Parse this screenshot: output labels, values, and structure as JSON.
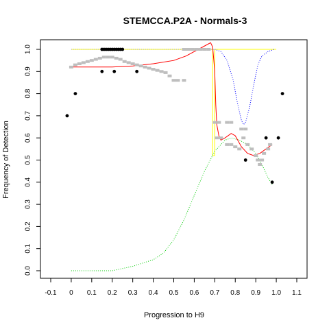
{
  "chart_data": {
    "type": "scatter",
    "title": "STEMCCA.P2A - Normals-3",
    "xlabel": "Progression to H9",
    "ylabel": "Frequency of Detection",
    "xlim": [
      -0.1,
      1.1
    ],
    "ylim": [
      0.0,
      1.0
    ],
    "x_ticks": [
      "-0.1",
      "0",
      "0.1",
      "0.2",
      "0.3",
      "0.4",
      "0.5",
      "0.6",
      "0.7",
      "0.8",
      "0.9",
      "1.0",
      "1.1"
    ],
    "y_ticks": [
      "0.0",
      "0.1",
      "0.2",
      "0.3",
      "0.4",
      "0.5",
      "0.6",
      "0.7",
      "0.8",
      "0.9",
      "1.0"
    ],
    "grid": false,
    "colors": {
      "black_points": "#000000",
      "gray_points": "#bebebe",
      "red_curve": "#ff0000",
      "blue_curve": "#0000ff",
      "green_curve": "#00cc00",
      "yellow_curve": "#ffff00"
    },
    "black_points": [
      {
        "x": -0.02,
        "y": 0.7
      },
      {
        "x": 0.02,
        "y": 0.8
      },
      {
        "x": 0.15,
        "y": 0.9
      },
      {
        "x": 0.21,
        "y": 0.9
      },
      {
        "x": 0.32,
        "y": 0.9
      },
      {
        "x": 0.15,
        "y": 1.0
      },
      {
        "x": 0.16,
        "y": 1.0
      },
      {
        "x": 0.17,
        "y": 1.0
      },
      {
        "x": 0.18,
        "y": 1.0
      },
      {
        "x": 0.19,
        "y": 1.0
      },
      {
        "x": 0.2,
        "y": 1.0
      },
      {
        "x": 0.21,
        "y": 1.0
      },
      {
        "x": 0.22,
        "y": 1.0
      },
      {
        "x": 0.23,
        "y": 1.0
      },
      {
        "x": 0.24,
        "y": 1.0
      },
      {
        "x": 0.25,
        "y": 1.0
      },
      {
        "x": 0.85,
        "y": 0.5
      },
      {
        "x": 0.95,
        "y": 0.6
      },
      {
        "x": 0.98,
        "y": 0.4
      },
      {
        "x": 1.01,
        "y": 0.6
      },
      {
        "x": 1.03,
        "y": 0.8
      }
    ],
    "gray_points": [
      {
        "x": 0.0,
        "y": 0.92
      },
      {
        "x": 0.02,
        "y": 0.93
      },
      {
        "x": 0.04,
        "y": 0.935
      },
      {
        "x": 0.06,
        "y": 0.94
      },
      {
        "x": 0.08,
        "y": 0.945
      },
      {
        "x": 0.1,
        "y": 0.95
      },
      {
        "x": 0.12,
        "y": 0.955
      },
      {
        "x": 0.14,
        "y": 0.96
      },
      {
        "x": 0.16,
        "y": 0.965
      },
      {
        "x": 0.18,
        "y": 0.965
      },
      {
        "x": 0.2,
        "y": 0.965
      },
      {
        "x": 0.22,
        "y": 0.96
      },
      {
        "x": 0.24,
        "y": 0.955
      },
      {
        "x": 0.26,
        "y": 0.945
      },
      {
        "x": 0.28,
        "y": 0.94
      },
      {
        "x": 0.3,
        "y": 0.935
      },
      {
        "x": 0.32,
        "y": 0.93
      },
      {
        "x": 0.34,
        "y": 0.925
      },
      {
        "x": 0.36,
        "y": 0.92
      },
      {
        "x": 0.38,
        "y": 0.915
      },
      {
        "x": 0.4,
        "y": 0.91
      },
      {
        "x": 0.42,
        "y": 0.905
      },
      {
        "x": 0.44,
        "y": 0.9
      },
      {
        "x": 0.46,
        "y": 0.895
      },
      {
        "x": 0.48,
        "y": 0.88
      },
      {
        "x": 0.5,
        "y": 0.86
      },
      {
        "x": 0.52,
        "y": 0.86
      },
      {
        "x": 0.55,
        "y": 0.86
      },
      {
        "x": 0.55,
        "y": 1.0
      },
      {
        "x": 0.57,
        "y": 1.0
      },
      {
        "x": 0.59,
        "y": 1.0
      },
      {
        "x": 0.61,
        "y": 1.0
      },
      {
        "x": 0.63,
        "y": 1.0
      },
      {
        "x": 0.65,
        "y": 1.0
      },
      {
        "x": 0.67,
        "y": 1.0
      },
      {
        "x": 0.7,
        "y": 0.67
      },
      {
        "x": 0.72,
        "y": 0.67
      },
      {
        "x": 0.76,
        "y": 0.67
      },
      {
        "x": 0.78,
        "y": 0.67
      },
      {
        "x": 0.71,
        "y": 0.6
      },
      {
        "x": 0.73,
        "y": 0.6
      },
      {
        "x": 0.83,
        "y": 0.64
      },
      {
        "x": 0.85,
        "y": 0.64
      },
      {
        "x": 0.76,
        "y": 0.57
      },
      {
        "x": 0.78,
        "y": 0.57
      },
      {
        "x": 0.8,
        "y": 0.56
      },
      {
        "x": 0.82,
        "y": 0.55
      },
      {
        "x": 0.84,
        "y": 0.6
      },
      {
        "x": 0.86,
        "y": 0.57
      },
      {
        "x": 0.88,
        "y": 0.55
      },
      {
        "x": 0.9,
        "y": 0.52
      },
      {
        "x": 0.91,
        "y": 0.5
      },
      {
        "x": 0.92,
        "y": 0.48
      },
      {
        "x": 0.93,
        "y": 0.5
      },
      {
        "x": 0.94,
        "y": 0.53
      },
      {
        "x": 0.96,
        "y": 0.55
      },
      {
        "x": 0.97,
        "y": 0.57
      }
    ],
    "red_curve": [
      {
        "x": 0.0,
        "y": 0.92
      },
      {
        "x": 0.1,
        "y": 0.92
      },
      {
        "x": 0.2,
        "y": 0.92
      },
      {
        "x": 0.3,
        "y": 0.925
      },
      {
        "x": 0.4,
        "y": 0.935
      },
      {
        "x": 0.5,
        "y": 0.95
      },
      {
        "x": 0.56,
        "y": 0.97
      },
      {
        "x": 0.62,
        "y": 1.0
      },
      {
        "x": 0.66,
        "y": 1.02
      },
      {
        "x": 0.68,
        "y": 1.03
      },
      {
        "x": 0.69,
        "y": 1.01
      },
      {
        "x": 0.7,
        "y": 0.9
      },
      {
        "x": 0.705,
        "y": 0.75
      },
      {
        "x": 0.71,
        "y": 0.66
      },
      {
        "x": 0.72,
        "y": 0.61
      },
      {
        "x": 0.73,
        "y": 0.59
      },
      {
        "x": 0.75,
        "y": 0.6
      },
      {
        "x": 0.78,
        "y": 0.62
      },
      {
        "x": 0.8,
        "y": 0.61
      },
      {
        "x": 0.83,
        "y": 0.56
      },
      {
        "x": 0.86,
        "y": 0.53
      },
      {
        "x": 0.89,
        "y": 0.52
      },
      {
        "x": 0.92,
        "y": 0.53
      },
      {
        "x": 0.95,
        "y": 0.55
      },
      {
        "x": 0.98,
        "y": 0.57
      }
    ],
    "blue_curve": [
      {
        "x": 0.7,
        "y": 1.0
      },
      {
        "x": 0.73,
        "y": 0.99
      },
      {
        "x": 0.76,
        "y": 0.95
      },
      {
        "x": 0.79,
        "y": 0.86
      },
      {
        "x": 0.81,
        "y": 0.76
      },
      {
        "x": 0.83,
        "y": 0.68
      },
      {
        "x": 0.84,
        "y": 0.66
      },
      {
        "x": 0.85,
        "y": 0.67
      },
      {
        "x": 0.87,
        "y": 0.74
      },
      {
        "x": 0.89,
        "y": 0.84
      },
      {
        "x": 0.91,
        "y": 0.93
      },
      {
        "x": 0.93,
        "y": 0.97
      },
      {
        "x": 0.96,
        "y": 0.99
      },
      {
        "x": 0.99,
        "y": 1.0
      }
    ],
    "green_curve": [
      {
        "x": 0.0,
        "y": 0.0
      },
      {
        "x": 0.1,
        "y": 0.0
      },
      {
        "x": 0.2,
        "y": 0.0
      },
      {
        "x": 0.3,
        "y": 0.02
      },
      {
        "x": 0.4,
        "y": 0.05
      },
      {
        "x": 0.45,
        "y": 0.08
      },
      {
        "x": 0.5,
        "y": 0.14
      },
      {
        "x": 0.55,
        "y": 0.23
      },
      {
        "x": 0.6,
        "y": 0.34
      },
      {
        "x": 0.65,
        "y": 0.45
      },
      {
        "x": 0.7,
        "y": 0.54
      },
      {
        "x": 0.75,
        "y": 0.59
      },
      {
        "x": 0.78,
        "y": 0.6
      },
      {
        "x": 0.82,
        "y": 0.59
      },
      {
        "x": 0.86,
        "y": 0.57
      },
      {
        "x": 0.9,
        "y": 0.53
      },
      {
        "x": 0.93,
        "y": 0.48
      },
      {
        "x": 0.96,
        "y": 0.42
      },
      {
        "x": 0.98,
        "y": 0.39
      }
    ],
    "gray_dotted_line": [
      {
        "x": 0.0,
        "y": 1.0
      },
      {
        "x": 0.7,
        "y": 1.0
      }
    ],
    "yellow_curve": [
      {
        "x": 0.0,
        "y": 1.0
      },
      {
        "x": 0.68,
        "y": 1.0
      },
      {
        "x": 0.69,
        "y": 1.0
      },
      {
        "x": 0.69,
        "y": 0.52
      },
      {
        "x": 0.7,
        "y": 0.52
      },
      {
        "x": 0.7,
        "y": 1.0
      },
      {
        "x": 1.0,
        "y": 1.0
      }
    ]
  }
}
